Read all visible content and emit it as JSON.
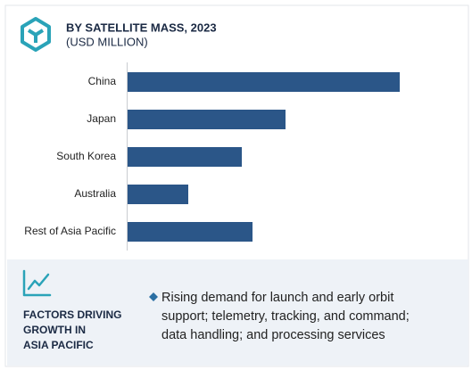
{
  "chart_data": {
    "type": "bar",
    "orientation": "horizontal",
    "title": "BY SATELLITE MASS, 2023",
    "subtitle": "(USD MILLION)",
    "categories": [
      "China",
      "Japan",
      "South Korea",
      "Australia",
      "Rest of Asia Pacific"
    ],
    "values": [
      305,
      177,
      128,
      68,
      140
    ],
    "color": "#2b5688"
  },
  "factors": {
    "heading": [
      "FACTORS DRIVING",
      "GROWTH IN",
      "ASIA PACIFIC"
    ],
    "point": [
      "Rising demand for launch and early orbit",
      "support; telemetry, tracking, and command;",
      "data handling; and processing services"
    ]
  }
}
